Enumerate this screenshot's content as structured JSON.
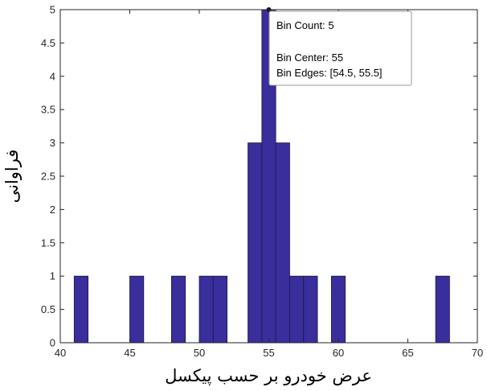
{
  "chart_data": {
    "type": "bar",
    "xlabel": "عرض خودرو بر حسب پیکسل",
    "ylabel": "فراوانی",
    "xlim": [
      40,
      70
    ],
    "ylim": [
      0,
      5
    ],
    "x_ticks": [
      "40",
      "45",
      "50",
      "55",
      "60",
      "65",
      "70"
    ],
    "y_ticks": [
      "0",
      "0.5",
      "1",
      "1.5",
      "2",
      "2.5",
      "3",
      "3.5",
      "4",
      "4.5",
      "5"
    ],
    "bin_width": 1,
    "bins": [
      {
        "center": 41.5,
        "count": 1
      },
      {
        "center": 45.5,
        "count": 1
      },
      {
        "center": 48.5,
        "count": 1
      },
      {
        "center": 50.5,
        "count": 1
      },
      {
        "center": 51.5,
        "count": 1
      },
      {
        "center": 54.0,
        "count": 3
      },
      {
        "center": 55.0,
        "count": 5
      },
      {
        "center": 56.0,
        "count": 3
      },
      {
        "center": 57.0,
        "count": 1
      },
      {
        "center": 58.0,
        "count": 1
      },
      {
        "center": 60.0,
        "count": 1
      },
      {
        "center": 67.5,
        "count": 1
      }
    ],
    "grid": false,
    "colors": {
      "bar_fill": "#3a2d9c",
      "bar_edge": "#1a1a40",
      "axis": "#262626"
    },
    "datatip": {
      "bin_index": 6,
      "line1": "Bin Count: 5",
      "line2": "Bin Center: 55",
      "line3": "Bin Edges: [54.5, 55.5]"
    }
  }
}
